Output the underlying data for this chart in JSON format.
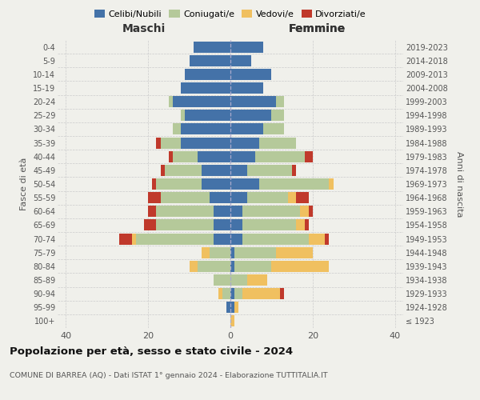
{
  "age_groups": [
    "100+",
    "95-99",
    "90-94",
    "85-89",
    "80-84",
    "75-79",
    "70-74",
    "65-69",
    "60-64",
    "55-59",
    "50-54",
    "45-49",
    "40-44",
    "35-39",
    "30-34",
    "25-29",
    "20-24",
    "15-19",
    "10-14",
    "5-9",
    "0-4"
  ],
  "birth_years": [
    "≤ 1923",
    "1924-1928",
    "1929-1933",
    "1934-1938",
    "1939-1943",
    "1944-1948",
    "1949-1953",
    "1954-1958",
    "1959-1963",
    "1964-1968",
    "1969-1973",
    "1974-1978",
    "1979-1983",
    "1984-1988",
    "1989-1993",
    "1994-1998",
    "1999-2003",
    "2004-2008",
    "2009-2013",
    "2014-2018",
    "2019-2023"
  ],
  "males": {
    "celibi": [
      0,
      1,
      0,
      0,
      0,
      0,
      4,
      4,
      4,
      5,
      7,
      7,
      8,
      12,
      12,
      11,
      14,
      12,
      11,
      10,
      9
    ],
    "coniugati": [
      0,
      0,
      2,
      4,
      8,
      5,
      19,
      14,
      14,
      12,
      11,
      9,
      6,
      5,
      2,
      1,
      1,
      0,
      0,
      0,
      0
    ],
    "vedovi": [
      0,
      0,
      1,
      0,
      2,
      2,
      1,
      0,
      0,
      0,
      0,
      0,
      0,
      0,
      0,
      0,
      0,
      0,
      0,
      0,
      0
    ],
    "divorziati": [
      0,
      0,
      0,
      0,
      0,
      0,
      3,
      3,
      2,
      3,
      1,
      1,
      1,
      1,
      0,
      0,
      0,
      0,
      0,
      0,
      0
    ]
  },
  "females": {
    "nubili": [
      0,
      1,
      1,
      0,
      1,
      1,
      3,
      3,
      3,
      4,
      7,
      4,
      6,
      7,
      8,
      10,
      11,
      8,
      10,
      5,
      8
    ],
    "coniugate": [
      0,
      0,
      2,
      4,
      9,
      10,
      16,
      13,
      14,
      10,
      17,
      11,
      12,
      9,
      5,
      3,
      2,
      0,
      0,
      0,
      0
    ],
    "vedove": [
      1,
      1,
      9,
      5,
      14,
      9,
      4,
      2,
      2,
      2,
      1,
      0,
      0,
      0,
      0,
      0,
      0,
      0,
      0,
      0,
      0
    ],
    "divorziate": [
      0,
      0,
      1,
      0,
      0,
      0,
      1,
      1,
      1,
      3,
      0,
      1,
      2,
      0,
      0,
      0,
      0,
      0,
      0,
      0,
      0
    ]
  },
  "colors": {
    "celibi": "#4472a8",
    "coniugati": "#b5c99a",
    "vedovi": "#f0c060",
    "divorziati": "#c0392b"
  },
  "xlim": 42,
  "title": "Popolazione per età, sesso e stato civile - 2024",
  "subtitle": "COMUNE DI BARREA (AQ) - Dati ISTAT 1° gennaio 2024 - Elaborazione TUTTITALIA.IT",
  "ylabel_left": "Fasce di età",
  "ylabel_right": "Anni di nascita",
  "xlabel_left": "Maschi",
  "xlabel_right": "Femmine",
  "legend_labels": [
    "Celibi/Nubili",
    "Coniugati/e",
    "Vedovi/e",
    "Divorziati/e"
  ],
  "background_color": "#f0f0eb"
}
